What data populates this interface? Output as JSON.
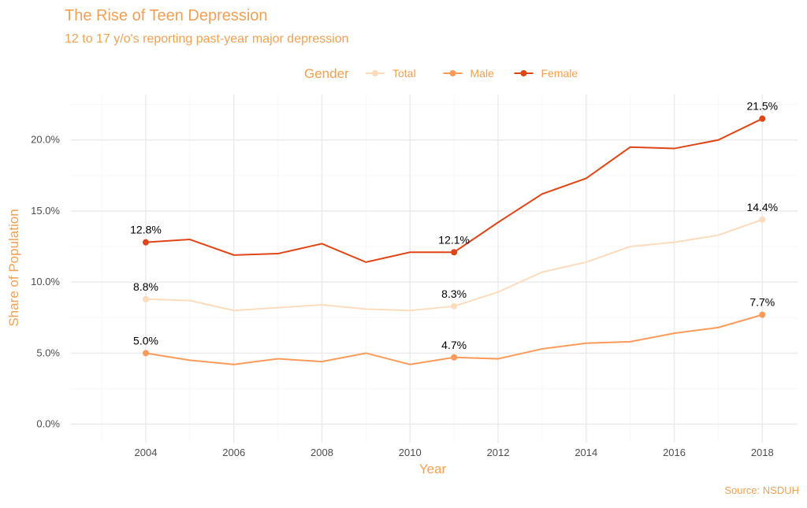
{
  "chart_data": {
    "type": "line",
    "title": "The Rise of Teen Depression",
    "subtitle": "12 to 17 y/o's reporting past-year major depression",
    "xlabel": "Year",
    "ylabel": "Share of Population",
    "caption": "Source: NSDUH",
    "legend_title": "Gender",
    "legend_position": "top",
    "grid": true,
    "x": [
      2004,
      2005,
      2006,
      2007,
      2008,
      2009,
      2010,
      2011,
      2012,
      2013,
      2014,
      2015,
      2016,
      2017,
      2018
    ],
    "xlim": [
      2002.3,
      2018.8
    ],
    "ylim": [
      -1.3,
      23.2
    ],
    "x_ticks": [
      "2004",
      "2006",
      "2008",
      "2010",
      "2012",
      "2014",
      "2016",
      "2018"
    ],
    "y_ticks": [
      "0.0%",
      "5.0%",
      "10.0%",
      "15.0%",
      "20.0%"
    ],
    "labeled_years": [
      2004,
      2011,
      2018
    ],
    "series": [
      {
        "name": "Total",
        "color": "#fddcbd",
        "values": [
          8.8,
          8.7,
          8.0,
          8.2,
          8.4,
          8.1,
          8.0,
          8.3,
          9.3,
          10.7,
          11.4,
          12.5,
          12.8,
          13.3,
          14.4
        ],
        "labels": [
          "8.8%",
          "8.3%",
          "14.4%"
        ]
      },
      {
        "name": "Male",
        "color": "#fc9a59",
        "values": [
          5.0,
          4.5,
          4.2,
          4.6,
          4.4,
          5.0,
          4.2,
          4.7,
          4.6,
          5.3,
          5.7,
          5.8,
          6.4,
          6.8,
          7.7
        ],
        "labels": [
          "5.0%",
          "4.7%",
          "7.7%"
        ]
      },
      {
        "name": "Female",
        "color": "#de4616",
        "values": [
          12.8,
          13.0,
          11.9,
          12.0,
          12.7,
          11.4,
          12.1,
          12.1,
          14.2,
          16.2,
          17.3,
          19.5,
          19.4,
          20.0,
          21.5
        ],
        "labels": [
          "12.8%",
          "12.1%",
          "21.5%"
        ]
      }
    ],
    "accent_color": "#f2a054"
  }
}
